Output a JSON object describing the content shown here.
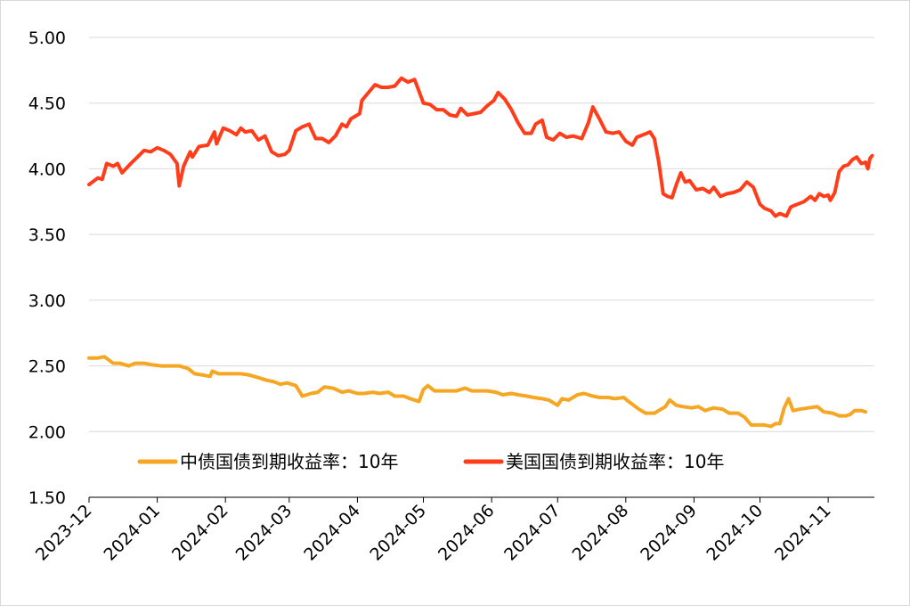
{
  "chart_data": {
    "type": "line",
    "y_ticks": [
      "5.00",
      "4.50",
      "4.00",
      "3.50",
      "3.00",
      "2.50",
      "2.00",
      "1.50"
    ],
    "ylim": [
      1.5,
      5.0
    ],
    "x_ticks": [
      "2023-12",
      "2024-01",
      "2024-02",
      "2024-03",
      "2024-04",
      "2024-05",
      "2024-06",
      "2024-07",
      "2024-08",
      "2024-09",
      "2024-10",
      "2024-11"
    ],
    "xlim": [
      "2023-12-01",
      "2024-11-22"
    ],
    "grid": true,
    "legend_position": "bottom",
    "series": [
      {
        "name": "中债国债到期收益率：10年",
        "color": "#f5a623",
        "points": [
          [
            "2023-12-01",
            2.56
          ],
          [
            "2023-12-05",
            2.56
          ],
          [
            "2023-12-08",
            2.57
          ],
          [
            "2023-12-12",
            2.52
          ],
          [
            "2023-12-15",
            2.52
          ],
          [
            "2023-12-19",
            2.5
          ],
          [
            "2023-12-22",
            2.52
          ],
          [
            "2023-12-26",
            2.52
          ],
          [
            "2023-12-29",
            2.51
          ],
          [
            "2024-01-03",
            2.5
          ],
          [
            "2024-01-08",
            2.5
          ],
          [
            "2024-01-11",
            2.5
          ],
          [
            "2024-01-15",
            2.48
          ],
          [
            "2024-01-18",
            2.44
          ],
          [
            "2024-01-22",
            2.43
          ],
          [
            "2024-01-25",
            2.42
          ],
          [
            "2024-01-26",
            2.46
          ],
          [
            "2024-01-29",
            2.44
          ],
          [
            "2024-02-01",
            2.44
          ],
          [
            "2024-02-05",
            2.44
          ],
          [
            "2024-02-08",
            2.44
          ],
          [
            "2024-02-12",
            2.43
          ],
          [
            "2024-02-16",
            2.41
          ],
          [
            "2024-02-20",
            2.39
          ],
          [
            "2024-02-23",
            2.38
          ],
          [
            "2024-02-26",
            2.36
          ],
          [
            "2024-02-29",
            2.37
          ],
          [
            "2024-03-04",
            2.35
          ],
          [
            "2024-03-07",
            2.27
          ],
          [
            "2024-03-11",
            2.29
          ],
          [
            "2024-03-14",
            2.3
          ],
          [
            "2024-03-17",
            2.34
          ],
          [
            "2024-03-21",
            2.33
          ],
          [
            "2024-03-25",
            2.3
          ],
          [
            "2024-03-28",
            2.31
          ],
          [
            "2024-04-01",
            2.29
          ],
          [
            "2024-04-04",
            2.29
          ],
          [
            "2024-04-08",
            2.3
          ],
          [
            "2024-04-11",
            2.29
          ],
          [
            "2024-04-15",
            2.3
          ],
          [
            "2024-04-18",
            2.27
          ],
          [
            "2024-04-22",
            2.27
          ],
          [
            "2024-04-25",
            2.25
          ],
          [
            "2024-04-29",
            2.23
          ],
          [
            "2024-05-01",
            2.32
          ],
          [
            "2024-05-03",
            2.35
          ],
          [
            "2024-05-06",
            2.31
          ],
          [
            "2024-05-09",
            2.31
          ],
          [
            "2024-05-13",
            2.31
          ],
          [
            "2024-05-16",
            2.31
          ],
          [
            "2024-05-20",
            2.33
          ],
          [
            "2024-05-23",
            2.31
          ],
          [
            "2024-05-27",
            2.31
          ],
          [
            "2024-05-30",
            2.31
          ],
          [
            "2024-06-03",
            2.3
          ],
          [
            "2024-06-06",
            2.28
          ],
          [
            "2024-06-10",
            2.29
          ],
          [
            "2024-06-13",
            2.28
          ],
          [
            "2024-06-17",
            2.27
          ],
          [
            "2024-06-20",
            2.26
          ],
          [
            "2024-06-24",
            2.25
          ],
          [
            "2024-06-27",
            2.24
          ],
          [
            "2024-07-01",
            2.2
          ],
          [
            "2024-07-03",
            2.25
          ],
          [
            "2024-07-06",
            2.24
          ],
          [
            "2024-07-10",
            2.28
          ],
          [
            "2024-07-13",
            2.29
          ],
          [
            "2024-07-17",
            2.27
          ],
          [
            "2024-07-20",
            2.26
          ],
          [
            "2024-07-24",
            2.26
          ],
          [
            "2024-07-27",
            2.25
          ],
          [
            "2024-07-31",
            2.26
          ],
          [
            "2024-08-03",
            2.22
          ],
          [
            "2024-08-07",
            2.17
          ],
          [
            "2024-08-10",
            2.14
          ],
          [
            "2024-08-14",
            2.14
          ],
          [
            "2024-08-17",
            2.17
          ],
          [
            "2024-08-19",
            2.19
          ],
          [
            "2024-08-21",
            2.24
          ],
          [
            "2024-08-24",
            2.2
          ],
          [
            "2024-08-27",
            2.19
          ],
          [
            "2024-08-31",
            2.18
          ],
          [
            "2024-09-03",
            2.19
          ],
          [
            "2024-09-06",
            2.16
          ],
          [
            "2024-09-10",
            2.18
          ],
          [
            "2024-09-14",
            2.17
          ],
          [
            "2024-09-17",
            2.14
          ],
          [
            "2024-09-21",
            2.14
          ],
          [
            "2024-09-24",
            2.11
          ],
          [
            "2024-09-27",
            2.05
          ],
          [
            "2024-09-30",
            2.05
          ],
          [
            "2024-10-03",
            2.05
          ],
          [
            "2024-10-06",
            2.04
          ],
          [
            "2024-10-08",
            2.06
          ],
          [
            "2024-10-10",
            2.06
          ],
          [
            "2024-10-12",
            2.18
          ],
          [
            "2024-10-14",
            2.25
          ],
          [
            "2024-10-16",
            2.16
          ],
          [
            "2024-10-19",
            2.17
          ],
          [
            "2024-10-23",
            2.18
          ],
          [
            "2024-10-27",
            2.19
          ],
          [
            "2024-10-30",
            2.15
          ],
          [
            "2024-11-03",
            2.14
          ],
          [
            "2024-11-06",
            2.12
          ],
          [
            "2024-11-09",
            2.12
          ],
          [
            "2024-11-11",
            2.13
          ],
          [
            "2024-11-13",
            2.16
          ],
          [
            "2024-11-16",
            2.16
          ],
          [
            "2024-11-18",
            2.15
          ]
        ]
      },
      {
        "name": "美国国债到期收益率：10年",
        "color": "#ff3d1a",
        "points": [
          [
            "2023-12-01",
            3.88
          ],
          [
            "2023-12-05",
            3.93
          ],
          [
            "2023-12-07",
            3.92
          ],
          [
            "2023-12-09",
            4.04
          ],
          [
            "2023-12-12",
            4.02
          ],
          [
            "2023-12-14",
            4.04
          ],
          [
            "2023-12-16",
            3.97
          ],
          [
            "2023-12-20",
            4.04
          ],
          [
            "2023-12-23",
            4.09
          ],
          [
            "2023-12-26",
            4.14
          ],
          [
            "2023-12-29",
            4.13
          ],
          [
            "2024-01-01",
            4.16
          ],
          [
            "2024-01-04",
            4.14
          ],
          [
            "2024-01-07",
            4.11
          ],
          [
            "2024-01-10",
            4.04
          ],
          [
            "2024-01-11",
            3.87
          ],
          [
            "2024-01-13",
            4.02
          ],
          [
            "2024-01-16",
            4.13
          ],
          [
            "2024-01-17",
            4.09
          ],
          [
            "2024-01-20",
            4.17
          ],
          [
            "2024-01-24",
            4.18
          ],
          [
            "2024-01-27",
            4.28
          ],
          [
            "2024-01-28",
            4.19
          ],
          [
            "2024-01-31",
            4.31
          ],
          [
            "2024-02-03",
            4.29
          ],
          [
            "2024-02-06",
            4.26
          ],
          [
            "2024-02-08",
            4.31
          ],
          [
            "2024-02-10",
            4.28
          ],
          [
            "2024-02-13",
            4.29
          ],
          [
            "2024-02-16",
            4.22
          ],
          [
            "2024-02-19",
            4.25
          ],
          [
            "2024-02-22",
            4.13
          ],
          [
            "2024-02-25",
            4.1
          ],
          [
            "2024-02-28",
            4.11
          ],
          [
            "2024-03-01",
            4.14
          ],
          [
            "2024-03-04",
            4.29
          ],
          [
            "2024-03-07",
            4.32
          ],
          [
            "2024-03-10",
            4.34
          ],
          [
            "2024-03-13",
            4.23
          ],
          [
            "2024-03-16",
            4.23
          ],
          [
            "2024-03-19",
            4.2
          ],
          [
            "2024-03-22",
            4.25
          ],
          [
            "2024-03-25",
            4.34
          ],
          [
            "2024-03-27",
            4.32
          ],
          [
            "2024-03-29",
            4.38
          ],
          [
            "2024-04-02",
            4.42
          ],
          [
            "2024-04-03",
            4.52
          ],
          [
            "2024-04-05",
            4.56
          ],
          [
            "2024-04-07",
            4.6
          ],
          [
            "2024-04-09",
            4.64
          ],
          [
            "2024-04-12",
            4.62
          ],
          [
            "2024-04-15",
            4.62
          ],
          [
            "2024-04-18",
            4.63
          ],
          [
            "2024-04-21",
            4.69
          ],
          [
            "2024-04-24",
            4.66
          ],
          [
            "2024-04-27",
            4.68
          ],
          [
            "2024-04-29",
            4.59
          ],
          [
            "2024-05-01",
            4.5
          ],
          [
            "2024-05-04",
            4.49
          ],
          [
            "2024-05-07",
            4.45
          ],
          [
            "2024-05-10",
            4.45
          ],
          [
            "2024-05-13",
            4.41
          ],
          [
            "2024-05-16",
            4.4
          ],
          [
            "2024-05-18",
            4.46
          ],
          [
            "2024-05-21",
            4.41
          ],
          [
            "2024-05-24",
            4.42
          ],
          [
            "2024-05-27",
            4.43
          ],
          [
            "2024-05-30",
            4.48
          ],
          [
            "2024-06-02",
            4.52
          ],
          [
            "2024-06-04",
            4.58
          ],
          [
            "2024-06-07",
            4.53
          ],
          [
            "2024-06-10",
            4.45
          ],
          [
            "2024-06-13",
            4.35
          ],
          [
            "2024-06-16",
            4.27
          ],
          [
            "2024-06-19",
            4.27
          ],
          [
            "2024-06-21",
            4.34
          ],
          [
            "2024-06-24",
            4.37
          ],
          [
            "2024-06-26",
            4.24
          ],
          [
            "2024-06-29",
            4.22
          ],
          [
            "2024-07-02",
            4.27
          ],
          [
            "2024-07-05",
            4.24
          ],
          [
            "2024-07-08",
            4.25
          ],
          [
            "2024-07-12",
            4.23
          ],
          [
            "2024-07-15",
            4.35
          ],
          [
            "2024-07-17",
            4.47
          ],
          [
            "2024-07-20",
            4.38
          ],
          [
            "2024-07-23",
            4.28
          ],
          [
            "2024-07-26",
            4.27
          ],
          [
            "2024-07-29",
            4.28
          ],
          [
            "2024-08-01",
            4.21
          ],
          [
            "2024-08-04",
            4.18
          ],
          [
            "2024-08-06",
            4.24
          ],
          [
            "2024-08-09",
            4.26
          ],
          [
            "2024-08-12",
            4.28
          ],
          [
            "2024-08-14",
            4.23
          ],
          [
            "2024-08-16",
            4.05
          ],
          [
            "2024-08-18",
            3.81
          ],
          [
            "2024-08-20",
            3.79
          ],
          [
            "2024-08-22",
            3.78
          ],
          [
            "2024-08-24",
            3.88
          ],
          [
            "2024-08-26",
            3.97
          ],
          [
            "2024-08-28",
            3.9
          ],
          [
            "2024-08-30",
            3.91
          ],
          [
            "2024-09-02",
            3.84
          ],
          [
            "2024-09-05",
            3.85
          ],
          [
            "2024-09-08",
            3.82
          ],
          [
            "2024-09-10",
            3.86
          ],
          [
            "2024-09-13",
            3.79
          ],
          [
            "2024-09-16",
            3.81
          ],
          [
            "2024-09-19",
            3.82
          ],
          [
            "2024-09-22",
            3.84
          ],
          [
            "2024-09-25",
            3.9
          ],
          [
            "2024-09-28",
            3.86
          ],
          [
            "2024-10-01",
            3.73
          ],
          [
            "2024-10-03",
            3.7
          ],
          [
            "2024-10-06",
            3.68
          ],
          [
            "2024-10-08",
            3.64
          ],
          [
            "2024-10-10",
            3.66
          ],
          [
            "2024-10-13",
            3.64
          ],
          [
            "2024-10-15",
            3.71
          ],
          [
            "2024-10-18",
            3.73
          ],
          [
            "2024-10-21",
            3.75
          ],
          [
            "2024-10-24",
            3.79
          ],
          [
            "2024-10-26",
            3.76
          ],
          [
            "2024-10-28",
            3.81
          ],
          [
            "2024-10-30",
            3.79
          ],
          [
            "2024-11-01",
            3.8
          ],
          [
            "2024-11-02",
            3.76
          ],
          [
            "2024-11-04",
            3.82
          ],
          [
            "2024-11-06",
            3.98
          ],
          [
            "2024-11-08",
            4.02
          ],
          [
            "2024-11-10",
            4.03
          ],
          [
            "2024-11-12",
            4.07
          ],
          [
            "2024-11-14",
            4.09
          ],
          [
            "2024-11-16",
            4.04
          ],
          [
            "2024-11-18",
            4.05
          ],
          [
            "2024-11-19",
            4.0
          ],
          [
            "2024-11-20",
            4.08
          ],
          [
            "2024-11-21",
            4.1
          ]
        ]
      }
    ]
  },
  "legend": [
    {
      "label": "中债国债到期收益率：10年",
      "color": "#f5a623"
    },
    {
      "label": "美国国债到期收益率：10年",
      "color": "#ff3d1a"
    }
  ]
}
